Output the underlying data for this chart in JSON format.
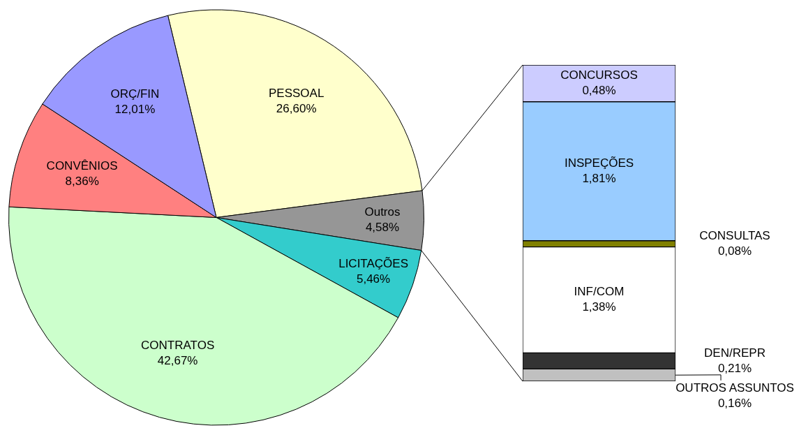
{
  "chart_data": [
    {
      "type": "pie",
      "categories": [
        "PESSOAL",
        "Outros",
        "LICITAÇÕES",
        "CONTRATOS",
        "CONVÊNIOS",
        "ORÇ/FIN"
      ],
      "values": [
        26.6,
        4.58,
        5.46,
        42.67,
        8.36,
        12.01
      ],
      "value_labels": [
        "26,60%",
        "4,58%",
        "5,46%",
        "42,67%",
        "8,36%",
        "12,01%"
      ],
      "colors": [
        "#ffffcc",
        "#969696",
        "#33cccc",
        "#ccffcc",
        "#ff8080",
        "#9999ff"
      ]
    },
    {
      "type": "other",
      "categories": [
        "OUTROS ASSUNTOS",
        "DEN/REPR",
        "INF/COM",
        "CONSULTAS",
        "INSPEÇÕES",
        "CONCURSOS"
      ],
      "values": [
        0.16,
        0.21,
        1.38,
        0.08,
        1.81,
        0.48
      ],
      "value_labels": [
        "0,16%",
        "0,21%",
        "1,38%",
        "0,08%",
        "1,81%",
        "0,48%"
      ],
      "colors": [
        "#c0c0c0",
        "#333333",
        "#ffffff",
        "#808000",
        "#99ccff",
        "#ccccff"
      ]
    }
  ]
}
